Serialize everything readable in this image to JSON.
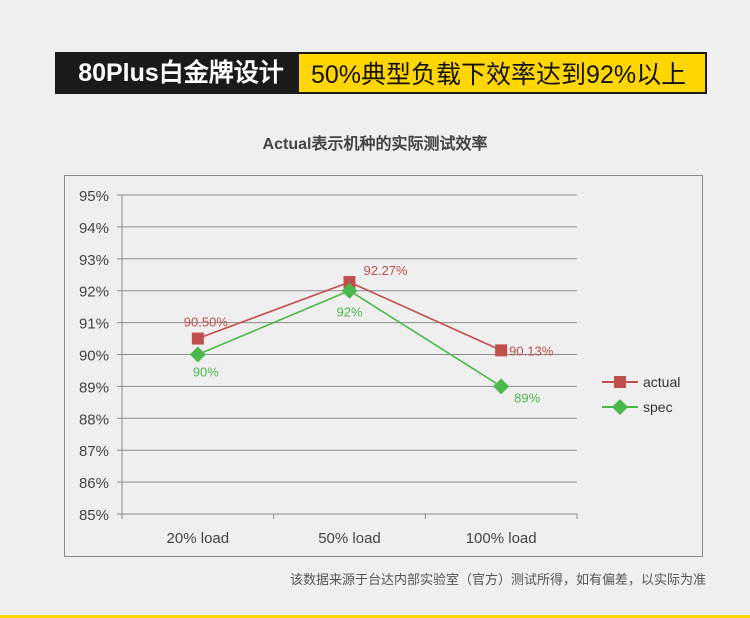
{
  "banner": {
    "left_text": "80Plus白金牌设计",
    "right_text": "50%典型负载下效率达到92%以上"
  },
  "footnote": "该数据来源于台达内部实验室（官方）测试所得，如有偏差，以实际为准",
  "chart_data": {
    "type": "line",
    "title": "Actual表示机种的实际测试效率",
    "categories": [
      "20% load",
      "50% load",
      "100% load"
    ],
    "ylim": [
      85,
      95
    ],
    "yticks": [
      "85%",
      "86%",
      "87%",
      "88%",
      "89%",
      "90%",
      "91%",
      "92%",
      "93%",
      "94%",
      "95%"
    ],
    "grid": true,
    "legend_position": "right",
    "series": [
      {
        "name": "actual",
        "values": [
          90.5,
          92.27,
          90.13
        ],
        "labels": [
          "90.50%",
          "92.27%",
          "90.13%"
        ],
        "color": "#c0504d",
        "marker": "square"
      },
      {
        "name": "spec",
        "values": [
          90,
          92,
          89
        ],
        "labels": [
          "90%",
          "92%",
          "89%"
        ],
        "color": "#4cb84c",
        "marker": "diamond"
      }
    ]
  }
}
